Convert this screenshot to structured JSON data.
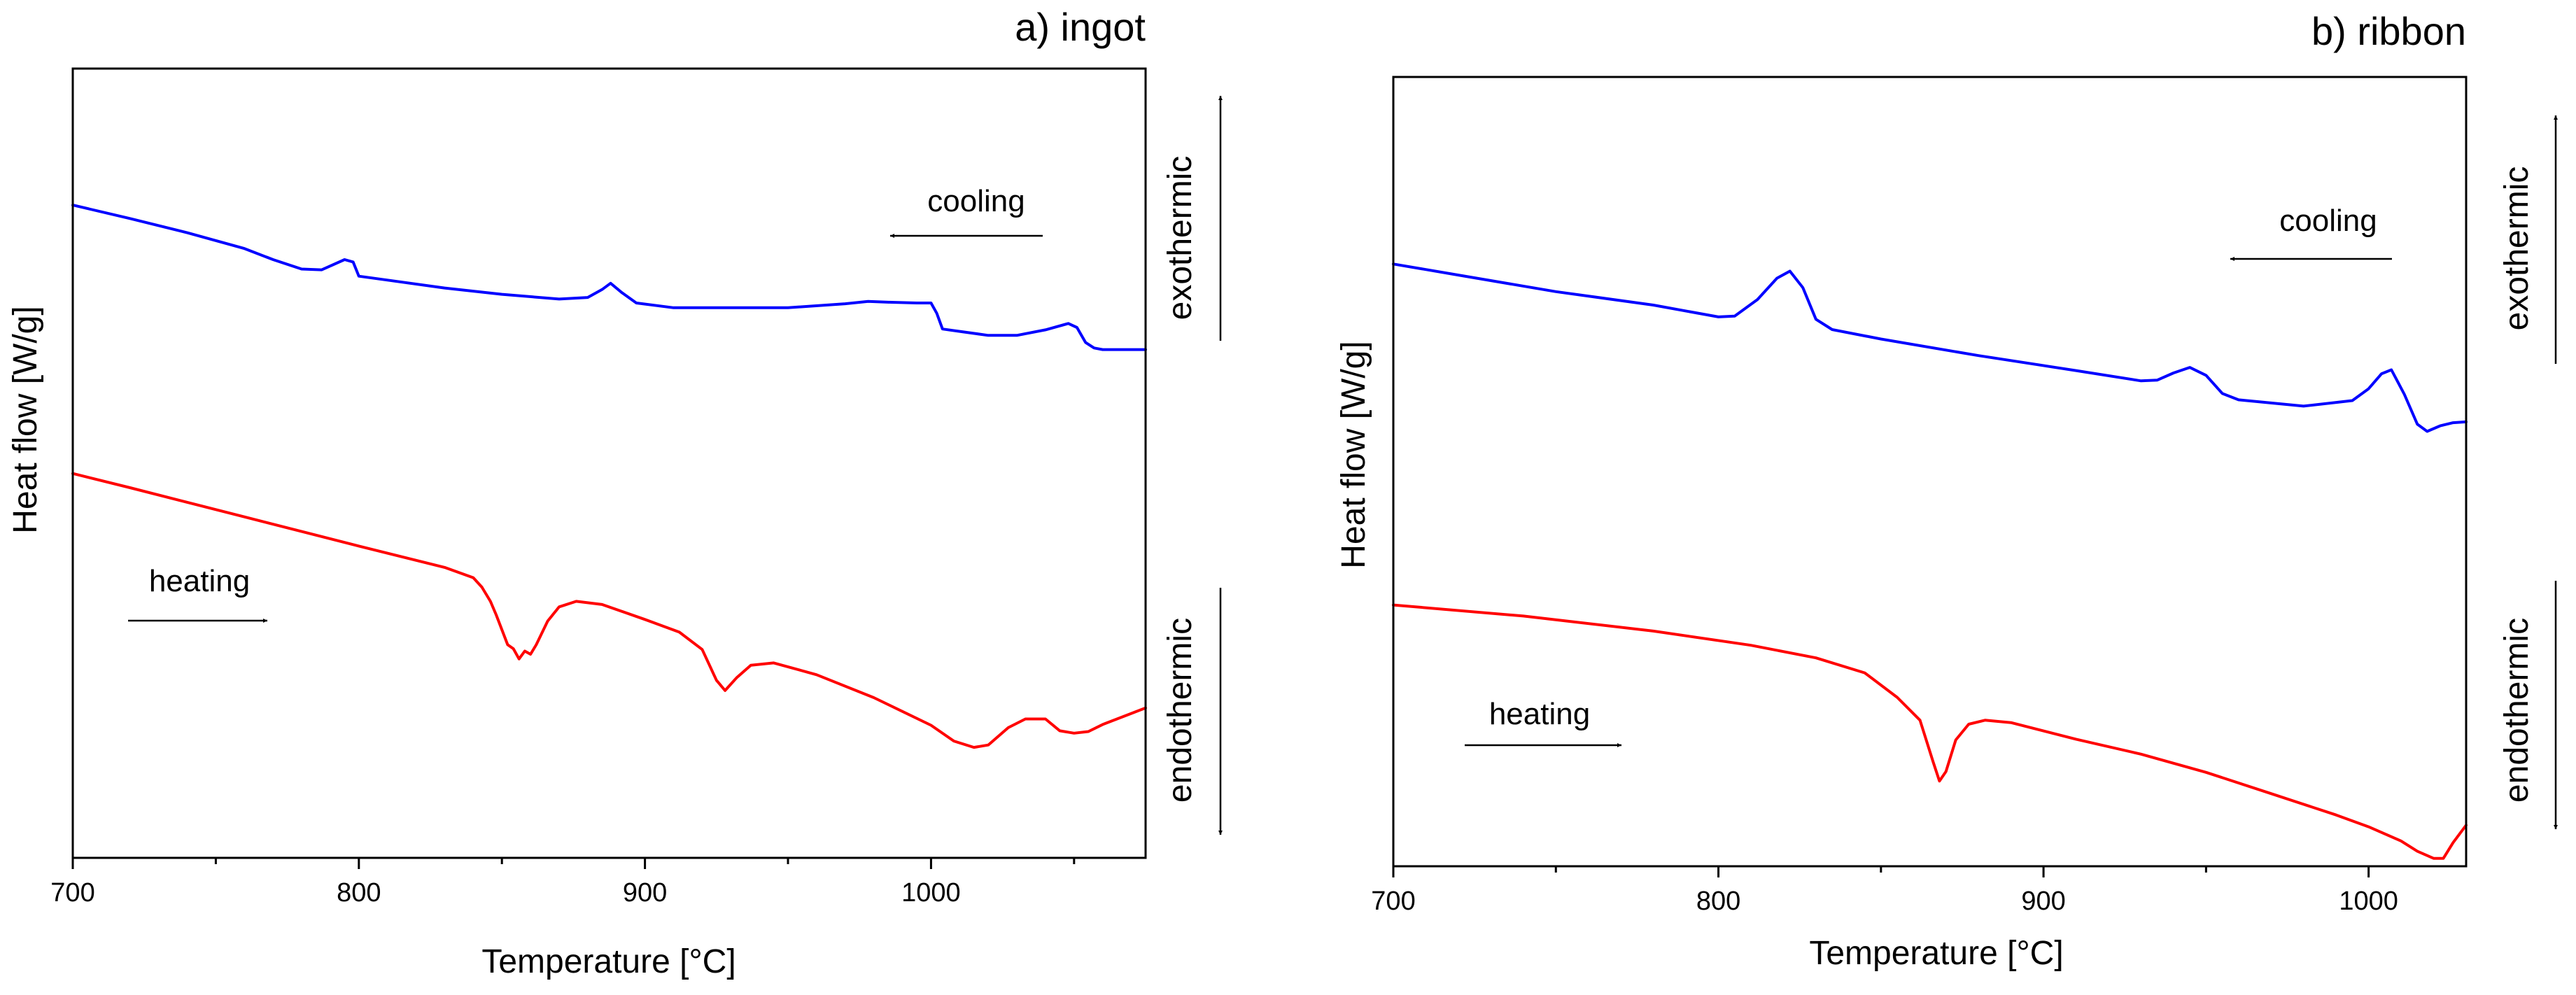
{
  "chart_data": [
    {
      "type": "line",
      "panel_label": "a) ingot",
      "xlabel": "Temperature [°C]",
      "ylabel": "Heat flow [W/g]",
      "xlim": [
        700,
        1075
      ],
      "ylim": [
        0,
        1
      ],
      "xticks": [
        700,
        800,
        900,
        1000
      ],
      "xtick_labels": [
        "700",
        "800",
        "900",
        "1000"
      ],
      "yticks": [],
      "grid": false,
      "annotations": {
        "cooling": "cooling",
        "heating": "heating",
        "exothermic": "exothermic",
        "endothermic": "endothermic"
      },
      "series": [
        {
          "name": "cooling",
          "color": "#0000ff",
          "x": [
            700,
            720,
            740,
            760,
            770,
            780,
            787,
            795,
            798,
            800,
            810,
            830,
            850,
            870,
            880,
            885,
            888,
            892,
            897,
            910,
            930,
            950,
            970,
            978,
            985,
            995,
            1000,
            1002,
            1004,
            1010,
            1020,
            1030,
            1040,
            1048,
            1051,
            1054,
            1057,
            1060,
            1075
          ],
          "values": [
            0.827,
            0.81,
            0.792,
            0.772,
            0.758,
            0.746,
            0.745,
            0.758,
            0.755,
            0.737,
            0.732,
            0.722,
            0.714,
            0.708,
            0.71,
            0.72,
            0.728,
            0.716,
            0.703,
            0.697,
            0.697,
            0.697,
            0.702,
            0.705,
            0.704,
            0.703,
            0.703,
            0.69,
            0.67,
            0.667,
            0.662,
            0.662,
            0.669,
            0.677,
            0.672,
            0.653,
            0.646,
            0.644,
            0.644
          ]
        },
        {
          "name": "heating",
          "color": "#ff0000",
          "x": [
            700,
            720,
            760,
            800,
            830,
            840,
            843,
            846,
            848,
            852,
            854,
            856,
            858,
            860,
            862,
            866,
            870,
            876,
            885,
            900,
            912,
            920,
            925,
            928,
            932,
            937,
            945,
            960,
            980,
            1000,
            1008,
            1015,
            1020,
            1027,
            1033,
            1040,
            1045,
            1050,
            1055,
            1060,
            1070,
            1075
          ],
          "values": [
            0.487,
            0.469,
            0.432,
            0.395,
            0.368,
            0.355,
            0.343,
            0.325,
            0.308,
            0.27,
            0.265,
            0.252,
            0.262,
            0.258,
            0.27,
            0.3,
            0.318,
            0.325,
            0.321,
            0.302,
            0.286,
            0.264,
            0.225,
            0.212,
            0.228,
            0.244,
            0.247,
            0.232,
            0.203,
            0.168,
            0.148,
            0.14,
            0.143,
            0.165,
            0.176,
            0.176,
            0.161,
            0.158,
            0.16,
            0.169,
            0.183,
            0.19
          ]
        }
      ]
    },
    {
      "type": "line",
      "panel_label": "b) ribbon",
      "xlabel": "Temperature [°C]",
      "ylabel": "Heat flow [W/g]",
      "xlim": [
        700,
        1030
      ],
      "ylim": [
        0,
        1
      ],
      "xticks": [
        700,
        800,
        900,
        1000
      ],
      "xtick_labels": [
        "700",
        "800",
        "900",
        "1000"
      ],
      "yticks": [],
      "grid": false,
      "annotations": {
        "cooling": "cooling",
        "heating": "heating",
        "exothermic": "exothermic",
        "endothermic": "endothermic"
      },
      "series": [
        {
          "name": "cooling",
          "color": "#0000ff",
          "x": [
            700,
            720,
            750,
            780,
            800,
            805,
            812,
            818,
            822,
            826,
            830,
            835,
            850,
            880,
            910,
            930,
            935,
            940,
            945,
            950,
            955,
            960,
            980,
            995,
            1000,
            1004,
            1007,
            1011,
            1015,
            1018,
            1022,
            1026,
            1030
          ],
          "values": [
            0.763,
            0.749,
            0.728,
            0.711,
            0.696,
            0.697,
            0.718,
            0.745,
            0.754,
            0.733,
            0.693,
            0.68,
            0.668,
            0.647,
            0.628,
            0.615,
            0.616,
            0.625,
            0.632,
            0.622,
            0.599,
            0.591,
            0.583,
            0.59,
            0.605,
            0.624,
            0.629,
            0.598,
            0.56,
            0.551,
            0.558,
            0.562,
            0.563
          ]
        },
        {
          "name": "heating",
          "color": "#ff0000",
          "x": [
            700,
            740,
            780,
            810,
            830,
            845,
            855,
            862,
            866,
            868,
            870,
            873,
            877,
            882,
            890,
            910,
            930,
            950,
            970,
            990,
            1000,
            1010,
            1015,
            1020,
            1023,
            1026,
            1030
          ],
          "values": [
            0.331,
            0.317,
            0.298,
            0.28,
            0.264,
            0.245,
            0.214,
            0.185,
            0.133,
            0.108,
            0.12,
            0.16,
            0.18,
            0.185,
            0.182,
            0.161,
            0.142,
            0.119,
            0.092,
            0.065,
            0.05,
            0.032,
            0.019,
            0.01,
            0.01,
            0.03,
            0.052
          ]
        }
      ]
    }
  ]
}
